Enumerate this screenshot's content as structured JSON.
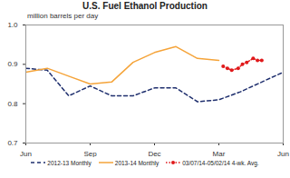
{
  "chart_data": {
    "type": "line",
    "title": "U.S. Fuel Ethanol Production",
    "subtitle": "million barrels per day",
    "categories": [
      "Jun",
      null,
      null,
      "Sep",
      null,
      null,
      "Dec",
      null,
      null,
      "Mar",
      null,
      null,
      "Jun"
    ],
    "ylim": [
      0.7,
      1
    ],
    "yticks": [
      0.7,
      0.8,
      0.9,
      {
        "value": 1,
        "label": "1.0"
      }
    ],
    "grid": false,
    "legend": "bottom",
    "series": [
      {
        "name": "2012-13 Monthly",
        "color": "#1f2f6e",
        "line_style": "dashed",
        "values": [
          0.89,
          0.885,
          0.82,
          0.845,
          0.82,
          0.82,
          0.84,
          0.84,
          0.805,
          0.81,
          0.83,
          0.855,
          0.88
        ]
      },
      {
        "name": "2013-14 Monthly",
        "color": "#f5a43a",
        "line_style": "solid",
        "values": [
          0.88,
          0.89,
          0.87,
          0.85,
          0.855,
          0.905,
          0.93,
          0.945,
          0.915,
          0.91,
          null,
          null,
          null
        ]
      },
      {
        "name": "03/07/14-05/02/14 4-wk. Avg.",
        "color": "#e0191b",
        "line_style": "dotted",
        "marker": "circle",
        "x": [
          9.2,
          9.4,
          9.6,
          9.9,
          10.1,
          10.3,
          10.6,
          10.8,
          11.0
        ],
        "values": [
          0.895,
          0.89,
          0.885,
          0.89,
          0.9,
          0.905,
          0.915,
          0.91,
          0.91
        ]
      }
    ]
  }
}
